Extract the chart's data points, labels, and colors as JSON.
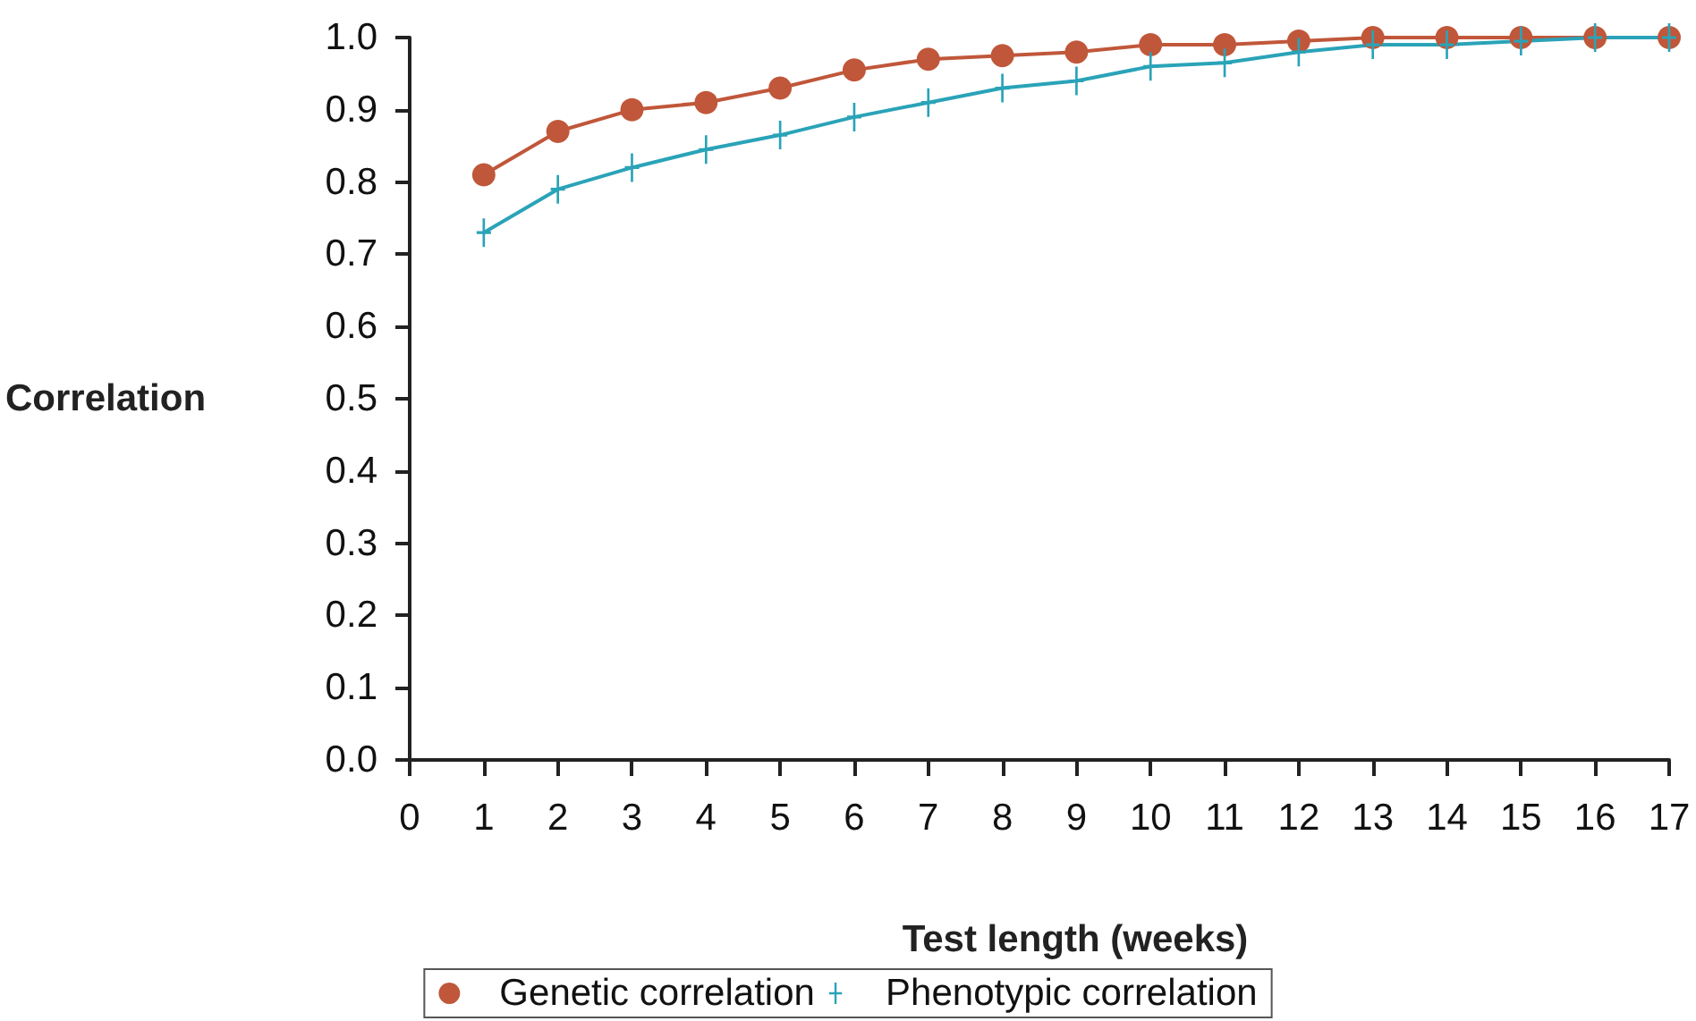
{
  "chart_data": {
    "type": "line",
    "xlabel": "Test length (weeks)",
    "ylabel": "Correlation",
    "x": [
      1,
      2,
      3,
      4,
      5,
      6,
      7,
      8,
      9,
      10,
      11,
      12,
      13,
      14,
      15,
      16,
      17
    ],
    "series": [
      {
        "name": "Genetic correlation",
        "color": "#c0573a",
        "marker": "circle",
        "values": [
          0.81,
          0.87,
          0.9,
          0.91,
          0.93,
          0.955,
          0.97,
          0.975,
          0.98,
          0.99,
          0.99,
          0.995,
          1.0,
          1.0,
          1.0,
          1.0,
          1.0
        ]
      },
      {
        "name": "Phenotypic correlation",
        "color": "#2aa3b8",
        "marker": "cross",
        "values": [
          0.73,
          0.79,
          0.82,
          0.845,
          0.865,
          0.89,
          0.91,
          0.93,
          0.94,
          0.96,
          0.965,
          0.98,
          0.99,
          0.99,
          0.995,
          1.0,
          1.0
        ]
      }
    ],
    "xlim": [
      0,
      17
    ],
    "xticks": [
      0,
      1,
      2,
      3,
      4,
      5,
      6,
      7,
      8,
      9,
      10,
      11,
      12,
      13,
      14,
      15,
      16,
      17
    ],
    "ylim": [
      0,
      1.0
    ],
    "yticks": [
      {
        "value": 0,
        "label": "0.0"
      },
      {
        "value": 0.1,
        "label": "0.1"
      },
      {
        "value": 0.2,
        "label": "0.2"
      },
      {
        "value": 0.3,
        "label": "0.3"
      },
      {
        "value": 0.4,
        "label": "0.4"
      },
      {
        "value": 0.5,
        "label": "0.5"
      },
      {
        "value": 0.6,
        "label": "0.6"
      },
      {
        "value": 0.7,
        "label": "0.7"
      },
      {
        "value": 0.8,
        "label": "0.8"
      },
      {
        "value": 0.9,
        "label": "0.9"
      },
      {
        "value": 1.0,
        "label": "1.0"
      }
    ],
    "grid": false,
    "legend": "bottom",
    "line_style": "solid"
  }
}
